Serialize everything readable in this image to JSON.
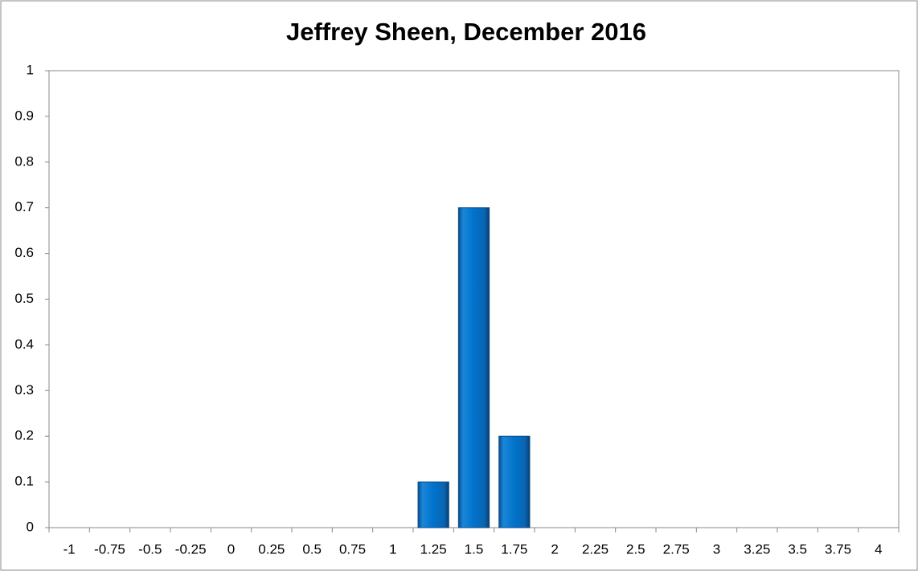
{
  "chart_data": {
    "type": "bar",
    "title": "Jeffrey Sheen, December 2016",
    "categories": [
      "-1",
      "-0.75",
      "-0.5",
      "-0.25",
      "0",
      "0.25",
      "0.5",
      "0.75",
      "1",
      "1.25",
      "1.5",
      "1.75",
      "2",
      "2.25",
      "2.5",
      "2.75",
      "3",
      "3.25",
      "3.5",
      "3.75",
      "4"
    ],
    "values": [
      0,
      0,
      0,
      0,
      0,
      0,
      0,
      0,
      0,
      0.1,
      0.7,
      0.2,
      0,
      0,
      0,
      0,
      0,
      0,
      0,
      0,
      0
    ],
    "color": "#0070c8",
    "ylim": [
      0,
      1
    ],
    "yticks": [
      0,
      0.1,
      0.2,
      0.3,
      0.4,
      0.5,
      0.6,
      0.7,
      0.8,
      0.9,
      1
    ],
    "grid": false
  }
}
